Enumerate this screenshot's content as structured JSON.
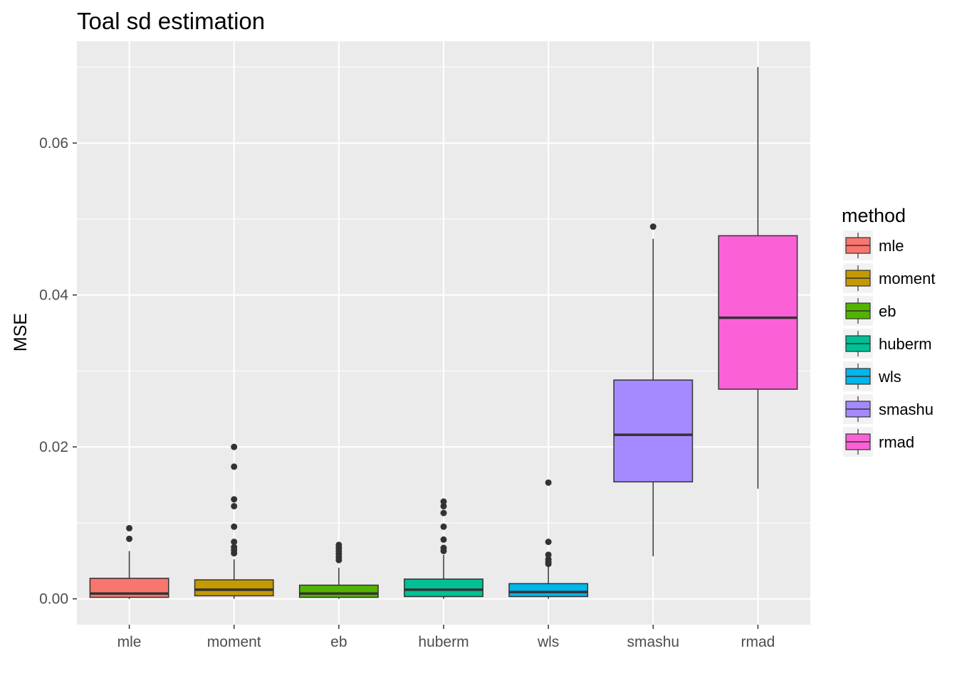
{
  "chart_data": {
    "type": "box",
    "title": "Toal sd estimation",
    "xlabel": "",
    "ylabel": "MSE",
    "ylim": [
      -0.0034,
      0.0734
    ],
    "y_ticks": [
      0.0,
      0.02,
      0.04,
      0.06
    ],
    "y_tick_labels": [
      "0.00",
      "0.02",
      "0.04",
      "0.06"
    ],
    "grid": true,
    "legend": {
      "title": "method",
      "position": "right"
    },
    "categories": [
      "mle",
      "moment",
      "eb",
      "huberm",
      "wls",
      "smashu",
      "rmad"
    ],
    "colors": [
      "#F8766D",
      "#C49A00",
      "#53B400",
      "#00C094",
      "#00B6EB",
      "#A58AFF",
      "#FB61D7"
    ],
    "boxes": [
      {
        "name": "mle",
        "min": 0.0,
        "q1": 0.0002,
        "median": 0.0007,
        "q3": 0.0027,
        "max": 0.0063,
        "outliers": [
          0.0079,
          0.0093
        ]
      },
      {
        "name": "moment",
        "min": 0.0,
        "q1": 0.0004,
        "median": 0.0012,
        "q3": 0.0025,
        "max": 0.0052,
        "outliers": [
          0.006,
          0.0064,
          0.0068,
          0.0075,
          0.0095,
          0.0122,
          0.0131,
          0.0174,
          0.02
        ]
      },
      {
        "name": "eb",
        "min": 0.0,
        "q1": 0.0002,
        "median": 0.0007,
        "q3": 0.0018,
        "max": 0.0041,
        "outliers": [
          0.0051,
          0.0055,
          0.0059,
          0.0063,
          0.0067,
          0.0071
        ]
      },
      {
        "name": "huberm",
        "min": 0.0,
        "q1": 0.0003,
        "median": 0.0012,
        "q3": 0.0026,
        "max": 0.0058,
        "outliers": [
          0.0063,
          0.0067,
          0.0078,
          0.0095,
          0.0113,
          0.0122,
          0.0128
        ]
      },
      {
        "name": "wls",
        "min": 0.0,
        "q1": 0.0003,
        "median": 0.0009,
        "q3": 0.002,
        "max": 0.0043,
        "outliers": [
          0.0046,
          0.0049,
          0.0052,
          0.0058,
          0.0075,
          0.0153
        ]
      },
      {
        "name": "smashu",
        "min": 0.0056,
        "q1": 0.0154,
        "median": 0.0216,
        "q3": 0.0288,
        "max": 0.0474,
        "outliers": [
          0.049
        ]
      },
      {
        "name": "rmad",
        "min": 0.0145,
        "q1": 0.0276,
        "median": 0.037,
        "q3": 0.0478,
        "max": 0.07,
        "outliers": []
      }
    ]
  }
}
